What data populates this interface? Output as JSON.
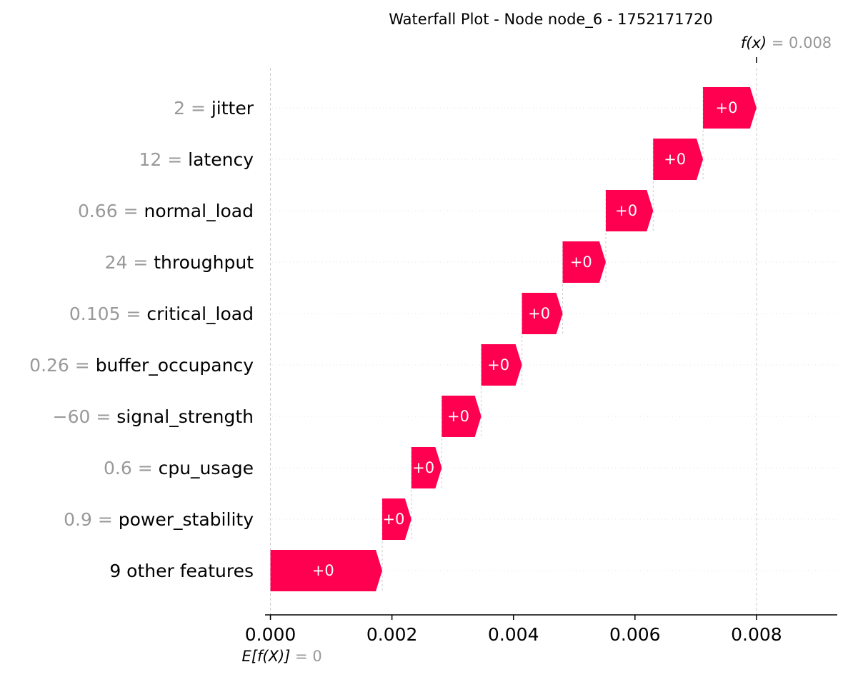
{
  "chart_data": {
    "type": "waterfall",
    "title": "Waterfall Plot - Node node_6 - 1752171720",
    "base_value": 0,
    "base_label_math": "E[f(X)]",
    "base_value_text": "= 0",
    "final_value": 0.008,
    "final_label_math": "f(x)",
    "final_value_text": "= 0.008",
    "x_ticks": [
      "0.000",
      "0.002",
      "0.004",
      "0.006",
      "0.008"
    ],
    "xlim": [
      -3e-05,
      0.00933
    ],
    "features": [
      {
        "value": "2",
        "name": "jitter",
        "start": 0.00712,
        "end": 0.008,
        "label": "+0"
      },
      {
        "value": "12",
        "name": "latency",
        "start": 0.0063,
        "end": 0.00712,
        "label": "+0"
      },
      {
        "value": "0.66",
        "name": "normal_load",
        "start": 0.00552,
        "end": 0.0063,
        "label": "+0"
      },
      {
        "value": "24",
        "name": "throughput",
        "start": 0.00481,
        "end": 0.00552,
        "label": "+0"
      },
      {
        "value": "0.105",
        "name": "critical_load",
        "start": 0.00414,
        "end": 0.00481,
        "label": "+0"
      },
      {
        "value": "0.26",
        "name": "buffer_occupancy",
        "start": 0.00347,
        "end": 0.00414,
        "label": "+0"
      },
      {
        "value": "−60",
        "name": "signal_strength",
        "start": 0.00282,
        "end": 0.00347,
        "label": "+0"
      },
      {
        "value": "0.6",
        "name": "cpu_usage",
        "start": 0.00232,
        "end": 0.00282,
        "label": "+0"
      },
      {
        "value": "0.9",
        "name": "power_stability",
        "start": 0.00184,
        "end": 0.00232,
        "label": "+0"
      },
      {
        "value": "",
        "name": "9 other features",
        "start": 0.0,
        "end": 0.00184,
        "label": "+0"
      }
    ],
    "colors": {
      "positive": "#ff0051",
      "axis": "#000000",
      "grid": "#cccccc",
      "muted": "#999999"
    }
  }
}
